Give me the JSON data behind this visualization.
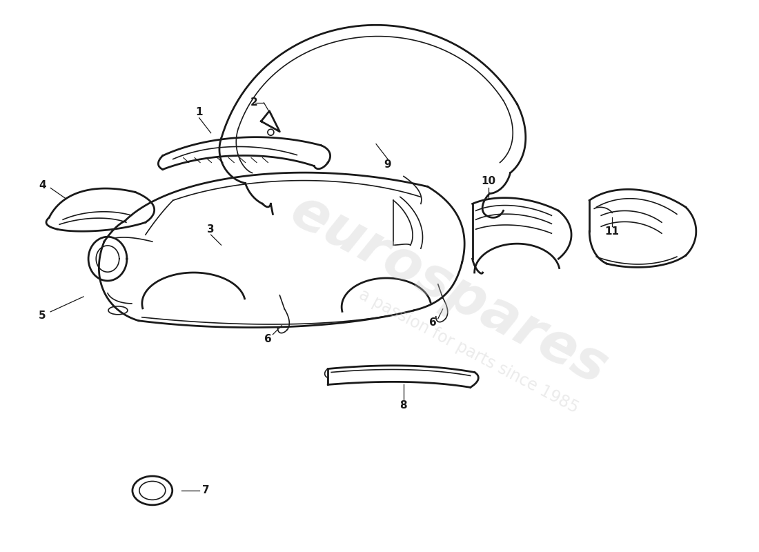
{
  "background_color": "#ffffff",
  "line_color": "#1a1a1a",
  "watermark_color": "#cccccc",
  "fig_width": 11.0,
  "fig_height": 8.0,
  "dpi": 100
}
